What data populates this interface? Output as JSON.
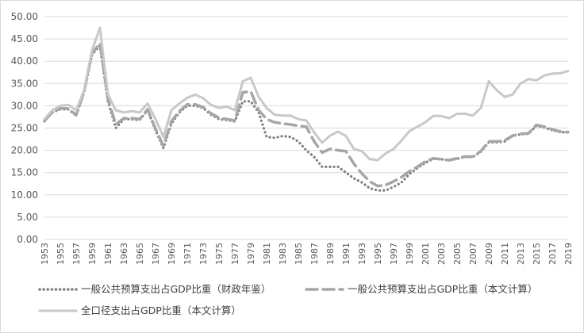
{
  "chart_data": {
    "type": "line",
    "title": "",
    "xlabel": "",
    "ylabel": "",
    "ylim": [
      0,
      50
    ],
    "yticks": [
      "0.00",
      "5.00",
      "10.00",
      "15.00",
      "20.00",
      "25.00",
      "30.00",
      "35.00",
      "40.00",
      "45.00",
      "50.00"
    ],
    "x_tick_labels": [
      "1953",
      "1955",
      "1957",
      "1959",
      "1961",
      "1963",
      "1965",
      "1967",
      "1969",
      "1971",
      "1973",
      "1975",
      "1977",
      "1979",
      "1981",
      "1983",
      "1985",
      "1987",
      "1989",
      "1991",
      "1993",
      "1995",
      "1997",
      "1999",
      "2001",
      "2003",
      "2005",
      "2007",
      "2009",
      "2011",
      "2013",
      "2015",
      "2017",
      "2019"
    ],
    "grid": "horizontal",
    "legend_position": "bottom",
    "x": [
      1953,
      1954,
      1955,
      1956,
      1957,
      1958,
      1959,
      1960,
      1961,
      1962,
      1963,
      1964,
      1965,
      1966,
      1967,
      1968,
      1969,
      1970,
      1971,
      1972,
      1973,
      1974,
      1975,
      1976,
      1977,
      1978,
      1979,
      1980,
      1981,
      1982,
      1983,
      1984,
      1985,
      1986,
      1987,
      1988,
      1989,
      1990,
      1991,
      1992,
      1993,
      1994,
      1995,
      1996,
      1997,
      1998,
      1999,
      2000,
      2001,
      2002,
      2003,
      2004,
      2005,
      2006,
      2007,
      2008,
      2009,
      2010,
      2011,
      2012,
      2013,
      2014,
      2015,
      2016,
      2017,
      2018,
      2019
    ],
    "series": [
      {
        "name": "一般公共预算支出占GDP比重（财政年鉴）",
        "style": "dotted",
        "color": "#7f7f7f",
        "values": [
          26.5,
          28.5,
          29.2,
          29.2,
          27.8,
          33.0,
          41.5,
          43.5,
          31.0,
          25.0,
          27.0,
          27.0,
          26.8,
          29.0,
          24.5,
          20.5,
          26.0,
          28.5,
          30.0,
          30.0,
          29.5,
          28.0,
          27.0,
          26.8,
          26.5,
          31.0,
          31.0,
          28.5,
          23.0,
          22.8,
          23.2,
          23.0,
          22.0,
          20.0,
          18.5,
          16.3,
          16.3,
          16.3,
          15.0,
          13.7,
          12.8,
          11.5,
          11.0,
          11.0,
          11.8,
          12.8,
          14.7,
          16.0,
          17.2,
          18.1,
          18.0,
          17.7,
          18.1,
          18.5,
          18.5,
          19.7,
          21.8,
          21.8,
          22.0,
          23.2,
          23.6,
          23.7,
          25.5,
          25.1,
          24.5,
          24.1,
          24.0
        ]
      },
      {
        "name": "一般公共预算支出占GDP比重（本文计算）",
        "style": "dashed",
        "color": "#a6a6a6",
        "values": [
          26.6,
          28.6,
          29.4,
          29.4,
          27.9,
          33.2,
          41.8,
          44.0,
          31.5,
          25.8,
          27.2,
          27.2,
          27.0,
          29.2,
          24.8,
          21.0,
          26.5,
          28.8,
          30.3,
          30.3,
          29.7,
          28.3,
          27.3,
          27.0,
          26.7,
          33.0,
          33.2,
          29.0,
          27.0,
          26.3,
          26.0,
          25.8,
          25.5,
          25.3,
          22.0,
          19.5,
          20.3,
          20.0,
          19.8,
          17.0,
          14.8,
          13.0,
          12.0,
          12.2,
          13.0,
          14.0,
          15.3,
          16.3,
          17.5,
          18.2,
          18.0,
          17.8,
          18.2,
          18.6,
          18.6,
          19.8,
          22.0,
          22.0,
          22.2,
          23.3,
          23.7,
          23.8,
          25.7,
          25.3,
          24.7,
          24.2,
          24.1
        ]
      },
      {
        "name": "全口径支出占GDP比重（本文计算）",
        "style": "solid",
        "color": "#c8c8c8",
        "values": [
          27.0,
          29.0,
          30.0,
          30.2,
          29.0,
          33.5,
          42.5,
          47.5,
          32.5,
          29.0,
          28.5,
          28.8,
          28.5,
          30.5,
          27.0,
          23.0,
          29.0,
          30.5,
          31.8,
          32.5,
          31.7,
          30.2,
          29.5,
          29.8,
          29.0,
          35.5,
          36.3,
          32.0,
          29.5,
          28.0,
          27.8,
          27.8,
          27.0,
          26.7,
          24.0,
          21.7,
          23.3,
          24.2,
          23.2,
          20.3,
          19.8,
          18.0,
          17.8,
          19.3,
          20.3,
          22.2,
          24.3,
          25.3,
          26.3,
          27.7,
          27.7,
          27.2,
          28.2,
          28.2,
          27.8,
          29.5,
          35.5,
          33.5,
          32.0,
          32.5,
          35.0,
          36.0,
          35.7,
          36.8,
          37.2,
          37.3,
          37.8
        ]
      }
    ]
  }
}
